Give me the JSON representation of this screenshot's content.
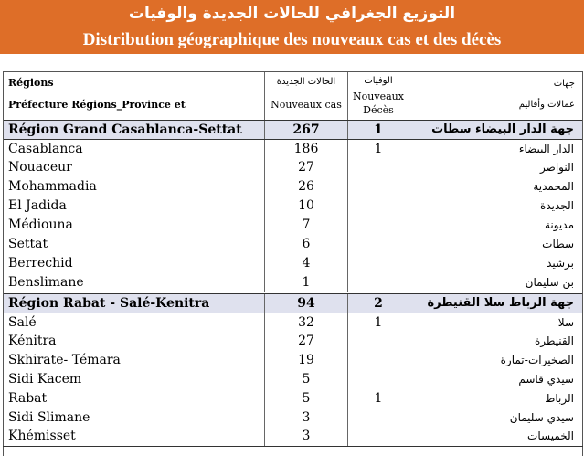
{
  "title": {
    "arabic": "التوزيع الجغرافي للحالات الجديدة والوفيات",
    "french": "Distribution géographique des nouveaux cas et des décès"
  },
  "colors": {
    "banner": "#de6e28",
    "region_row": "#dfe1ee"
  },
  "header": {
    "regions_fr_line1": "Régions",
    "regions_fr_line2": "Préfecture Régions_Province et",
    "new_cases_ar": "الحالات الجديدة",
    "new_cases_fr": "Nouveaux cas",
    "deaths_ar": "الوفيات",
    "deaths_fr_line1": "Nouveaux",
    "deaths_fr_line2": "Décès",
    "regions_ar_line1": "جهات",
    "regions_ar_line2": "عمالات وأقاليم"
  },
  "rows": [
    {
      "type": "region",
      "name_fr": "Région Grand Casablanca-Settat",
      "cases": "267",
      "deaths": "1",
      "name_ar": "جهة الدار البيضاء سطات"
    },
    {
      "type": "province",
      "name_fr": "Casablanca",
      "cases": "186",
      "deaths": "1",
      "name_ar": "الدار البيضاء"
    },
    {
      "type": "province",
      "name_fr": "Nouaceur",
      "cases": "27",
      "deaths": "",
      "name_ar": "النواصر"
    },
    {
      "type": "province",
      "name_fr": "Mohammadia",
      "cases": "26",
      "deaths": "",
      "name_ar": "المحمدية"
    },
    {
      "type": "province",
      "name_fr": "El Jadida",
      "cases": "10",
      "deaths": "",
      "name_ar": "الجديدة"
    },
    {
      "type": "province",
      "name_fr": "Médiouna",
      "cases": "7",
      "deaths": "",
      "name_ar": "مديونة"
    },
    {
      "type": "province",
      "name_fr": "Settat",
      "cases": "6",
      "deaths": "",
      "name_ar": "سطات"
    },
    {
      "type": "province",
      "name_fr": "Berrechid",
      "cases": "4",
      "deaths": "",
      "name_ar": "برشيد"
    },
    {
      "type": "province",
      "name_fr": "Benslimane",
      "cases": "1",
      "deaths": "",
      "name_ar": "بن سليمان"
    },
    {
      "type": "region",
      "name_fr": "Région Rabat - Salé-Kenitra",
      "cases": "94",
      "deaths": "2",
      "name_ar": "جهة الرباط سلا القنيطرة"
    },
    {
      "type": "province",
      "name_fr": "Salé",
      "cases": "32",
      "deaths": "1",
      "name_ar": "سلا"
    },
    {
      "type": "province",
      "name_fr": "Kénitra",
      "cases": "27",
      "deaths": "",
      "name_ar": "القنيطرة"
    },
    {
      "type": "province",
      "name_fr": "Skhirate- Témara",
      "cases": "19",
      "deaths": "",
      "name_ar": "الصخيرات-تمارة"
    },
    {
      "type": "province",
      "name_fr": "Sidi Kacem",
      "cases": "5",
      "deaths": "",
      "name_ar": "سيدي قاسم"
    },
    {
      "type": "province",
      "name_fr": "Rabat",
      "cases": "5",
      "deaths": "1",
      "name_ar": "الرباط"
    },
    {
      "type": "province",
      "name_fr": "Sidi Slimane",
      "cases": "3",
      "deaths": "",
      "name_ar": "سيدي سليمان"
    },
    {
      "type": "province",
      "name_fr": "Khémisset",
      "cases": "3",
      "deaths": "",
      "name_ar": "الخميسات"
    }
  ]
}
